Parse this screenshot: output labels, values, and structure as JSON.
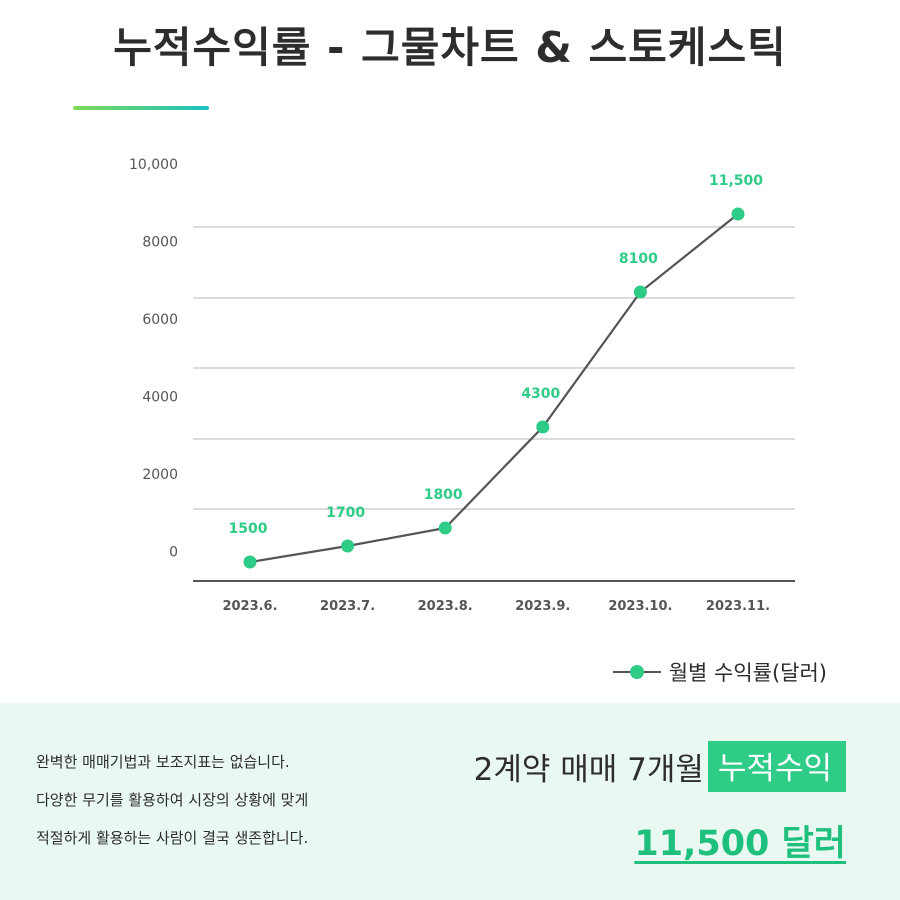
{
  "page": {
    "title": "누적수익률 - 그물차트 & 스토케스틱"
  },
  "colors": {
    "accent": "#2ecc87",
    "accent_dark": "#1fbf7d",
    "line": "#555555",
    "grid": "#b9b9b9",
    "text": "#2d2d2d",
    "tick": "#555555",
    "highlight_bg": "#2ecc87",
    "footer_bg": "#eaf8f2",
    "title_accent_from": "#7ed957",
    "title_accent_to": "#19c2c2"
  },
  "chart_data": {
    "type": "line",
    "categories": [
      "2023.6.",
      "2023.7.",
      "2023.8.",
      "2023.9.",
      "2023.10.",
      "2023.11."
    ],
    "series": [
      {
        "name": "월별 수익률(달러)",
        "values": [
          1500,
          1700,
          1800,
          4300,
          8100,
          11500
        ],
        "labels": [
          "1500",
          "1700",
          "1800",
          "4300",
          "8100",
          "11,500"
        ]
      }
    ],
    "y_tick_labels": [
      "0",
      "2000",
      "4000",
      "6000",
      "8000",
      "10,000"
    ],
    "grid": true,
    "legend_position": "bottom-right",
    "title": "",
    "xlabel": "",
    "ylabel": ""
  },
  "footer": {
    "description_lines": [
      "완벽한 매매기법과 보조지표는 없습니다.",
      "다양한 무기를 활용하여 시장의 상황에 맞게",
      "적절하게 활용하는 사람이 결국 생존합니다."
    ],
    "headline_prefix": "2계약 매매 7개월",
    "headline_highlight": "누적수익",
    "result": "11,500 달러"
  }
}
